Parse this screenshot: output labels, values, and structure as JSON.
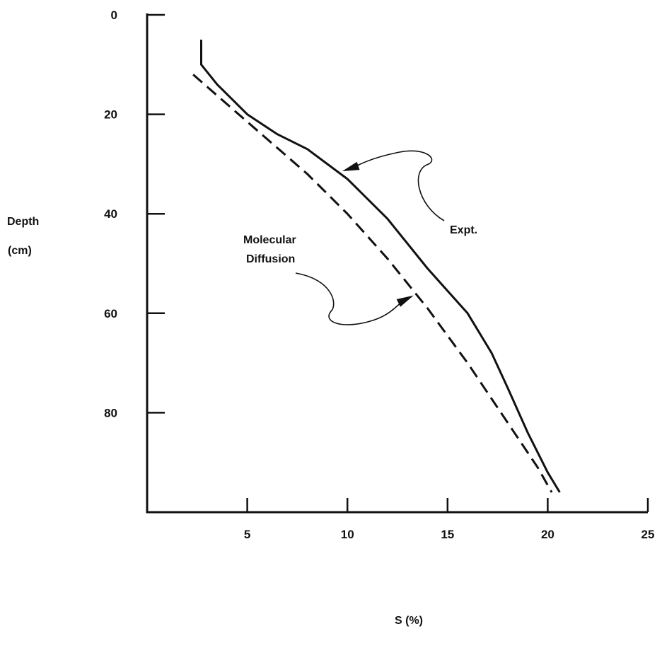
{
  "chart_data": {
    "type": "line",
    "xlabel": "S (%)",
    "ylabel": [
      "Depth",
      "(cm)"
    ],
    "xlim": [
      0,
      25
    ],
    "ylim": [
      0,
      100
    ],
    "y_inverted": true,
    "x_ticks": [
      5,
      10,
      15,
      20,
      25
    ],
    "y_ticks": [
      0,
      20,
      40,
      60,
      80
    ],
    "grid": false,
    "legend": "none",
    "series": [
      {
        "style": "solid",
        "color": "#111111",
        "points": [
          [
            2.7,
            5
          ],
          [
            2.7,
            10
          ],
          [
            3.5,
            14
          ],
          [
            5.0,
            20
          ],
          [
            6.5,
            24
          ],
          [
            8.0,
            27
          ],
          [
            10.0,
            33
          ],
          [
            12.0,
            41
          ],
          [
            14.0,
            51
          ],
          [
            16.0,
            60
          ],
          [
            17.2,
            68
          ],
          [
            18.0,
            75
          ],
          [
            19.0,
            84
          ],
          [
            20.0,
            92
          ],
          [
            20.6,
            96
          ]
        ]
      },
      {
        "style": "dashed",
        "color": "#111111",
        "points": [
          [
            2.3,
            12
          ],
          [
            4.0,
            18
          ],
          [
            6.0,
            25
          ],
          [
            8.0,
            32
          ],
          [
            10.0,
            40
          ],
          [
            12.0,
            49
          ],
          [
            14.0,
            59
          ],
          [
            16.0,
            70
          ],
          [
            18.0,
            82
          ],
          [
            19.5,
            91
          ],
          [
            20.2,
            96
          ]
        ]
      }
    ],
    "annotations": [
      {
        "name": "expt",
        "lines": [
          "Expt."
        ],
        "target": "series-0",
        "arrow_tip": [
          9.6,
          32
        ]
      },
      {
        "name": "molecular-diffusion",
        "lines": [
          "Molecular",
          "Diffusion"
        ],
        "target": "series-1",
        "arrow_tip": [
          13.2,
          56
        ]
      }
    ]
  }
}
